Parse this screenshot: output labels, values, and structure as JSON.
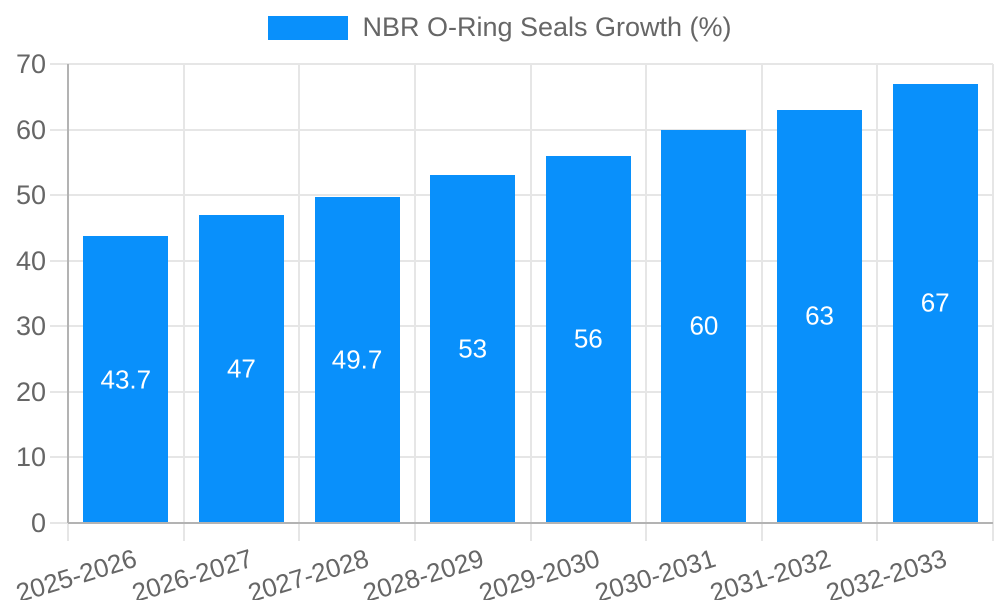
{
  "chart_data": {
    "type": "bar",
    "title": "",
    "legend_position": "top",
    "grid": true,
    "categories": [
      "2025-2026",
      "2026-2027",
      "2027-2028",
      "2028-2029",
      "2029-2030",
      "2030-2031",
      "2031-2032",
      "2032-2033"
    ],
    "series": [
      {
        "name": "NBR O-Ring Seals Growth (%)",
        "values": [
          43.7,
          47,
          49.7,
          53,
          56,
          60,
          63,
          67
        ]
      }
    ],
    "value_labels": [
      "43.7",
      "47",
      "49.7",
      "53",
      "56",
      "60",
      "63",
      "67"
    ],
    "ylim": [
      0,
      70
    ],
    "ytick_step": 10,
    "ytick_labels": [
      "0",
      "10",
      "20",
      "30",
      "40",
      "50",
      "60",
      "70"
    ],
    "xlabel": "",
    "ylabel": "",
    "x_label_rotation_deg": -17,
    "colors": {
      "bar": "#0990fb",
      "grid": "#e6e6e6",
      "axis": "#b3b3b3",
      "tick_text": "#666666",
      "bar_label": "#ffffff"
    }
  }
}
